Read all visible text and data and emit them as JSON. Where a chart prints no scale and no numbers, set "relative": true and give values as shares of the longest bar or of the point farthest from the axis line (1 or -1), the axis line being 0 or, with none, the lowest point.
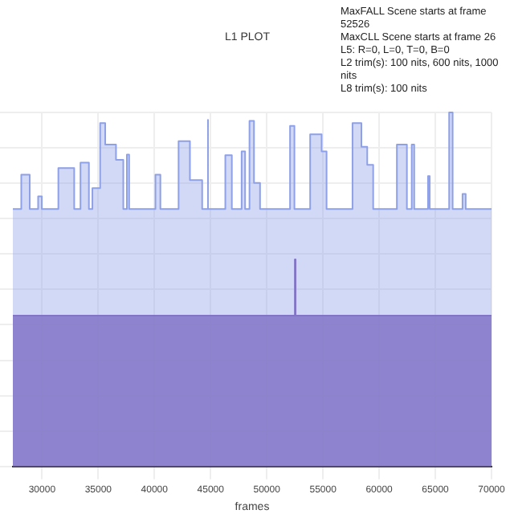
{
  "chart_data": {
    "type": "area",
    "title": "L1 PLOT",
    "xlabel": "frames",
    "relative": true,
    "grid": true,
    "legend": false,
    "annotations": [
      "MaxFALL Scene starts at frame 52526",
      "MaxCLL Scene starts at frame 26",
      "L5: R=0, L=0, T=0, B=0",
      "L2 trim(s): 100 nits, 600 nits, 1000 nits",
      "L8 trim(s): 100 nits"
    ],
    "xlim": [
      27400,
      70000
    ],
    "xticks": [
      30000,
      35000,
      40000,
      45000,
      50000,
      55000,
      60000,
      65000,
      70000
    ],
    "series": [
      {
        "color": "#8ea0e8",
        "x": [
          27400,
          28150,
          28150,
          28900,
          28900,
          29650,
          29650,
          29980,
          29980,
          31450,
          31450,
          32860,
          32860,
          33420,
          33420,
          34170,
          34170,
          34480,
          34480,
          35170,
          35170,
          35620,
          35620,
          36580,
          36580,
          37230,
          37230,
          37550,
          37550,
          37750,
          37750,
          40090,
          40090,
          40530,
          40530,
          42150,
          42150,
          43160,
          43160,
          44250,
          44250,
          44700,
          44700,
          44800,
          44800,
          46310,
          46310,
          46890,
          46890,
          47760,
          47760,
          48070,
          48070,
          48460,
          48460,
          48860,
          48860,
          49400,
          49400,
          52070,
          52070,
          52460,
          52460,
          53860,
          53860,
          54880,
          54880,
          55320,
          55320,
          57630,
          57630,
          58420,
          58420,
          58940,
          58940,
          59470,
          59470,
          61580,
          61580,
          62470,
          62470,
          62900,
          62900,
          63120,
          63120,
          64350,
          64350,
          64500,
          64500,
          66230,
          66230,
          66540,
          66540,
          67420,
          67420,
          67700,
          67700,
          70000
        ],
        "values": [
          0.727,
          0.727,
          0.824,
          0.824,
          0.727,
          0.727,
          0.763,
          0.763,
          0.727,
          0.727,
          0.843,
          0.843,
          0.727,
          0.727,
          0.858,
          0.858,
          0.727,
          0.727,
          0.786,
          0.786,
          0.97,
          0.97,
          0.909,
          0.909,
          0.866,
          0.866,
          0.727,
          0.727,
          0.881,
          0.881,
          0.727,
          0.727,
          0.824,
          0.824,
          0.727,
          0.727,
          0.919,
          0.919,
          0.809,
          0.809,
          0.727,
          0.727,
          0.979,
          0.979,
          0.727,
          0.727,
          0.879,
          0.879,
          0.727,
          0.727,
          0.89,
          0.89,
          0.727,
          0.727,
          0.976,
          0.976,
          0.801,
          0.801,
          0.727,
          0.727,
          0.962,
          0.962,
          0.727,
          0.727,
          0.938,
          0.938,
          0.89,
          0.89,
          0.727,
          0.727,
          0.97,
          0.97,
          0.903,
          0.903,
          0.852,
          0.852,
          0.727,
          0.727,
          0.909,
          0.909,
          0.727,
          0.727,
          0.909,
          0.909,
          0.727,
          0.727,
          0.82,
          0.82,
          0.727,
          0.727,
          1,
          1,
          0.727,
          0.727,
          0.77,
          0.77,
          0.727,
          0.727
        ]
      },
      {
        "color": "#7a58b0",
        "x": [
          27400,
          52500,
          52500,
          52560,
          52560,
          70000
        ],
        "values": [
          0.426,
          0.426,
          0.585,
          0.585,
          0.426,
          0.426
        ]
      }
    ]
  }
}
